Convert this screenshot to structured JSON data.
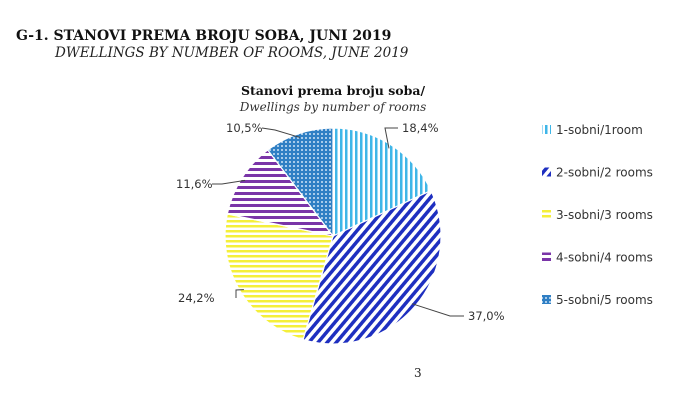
{
  "header": {
    "title": "G-1. STANOVI PREMA BROJU SOBA, JUNI 2019",
    "subtitle": "DWELLINGS BY NUMBER OF ROOMS, JUNE 2019"
  },
  "chart_data": {
    "type": "pie",
    "title": "Stanovi prema broju soba/",
    "subtitle": "Dwellings by number of rooms",
    "start": "12 o'clock, clockwise",
    "legend_position": "right",
    "categories": [
      "1-sobni/1room",
      "2-sobni/2 rooms",
      "3-sobni/3 rooms",
      "4-sobni/4 rooms",
      "5-sobni/5 rooms"
    ],
    "values": [
      18.4,
      37.0,
      24.2,
      11.6,
      10.5
    ],
    "labels": [
      "18,4%",
      "37,0%",
      "24,2%",
      "11,6%",
      "10,5%"
    ],
    "colors": [
      "#3fb6e8",
      "#1e2fc0",
      "#f4ef3a",
      "#7a35a8",
      "#2f7fc4"
    ],
    "patterns": [
      "vertical-stripes",
      "diagonal-stripes",
      "horizontal-stripes",
      "horizontal-stripes",
      "dots"
    ]
  },
  "footer": {
    "page_number": "3"
  }
}
